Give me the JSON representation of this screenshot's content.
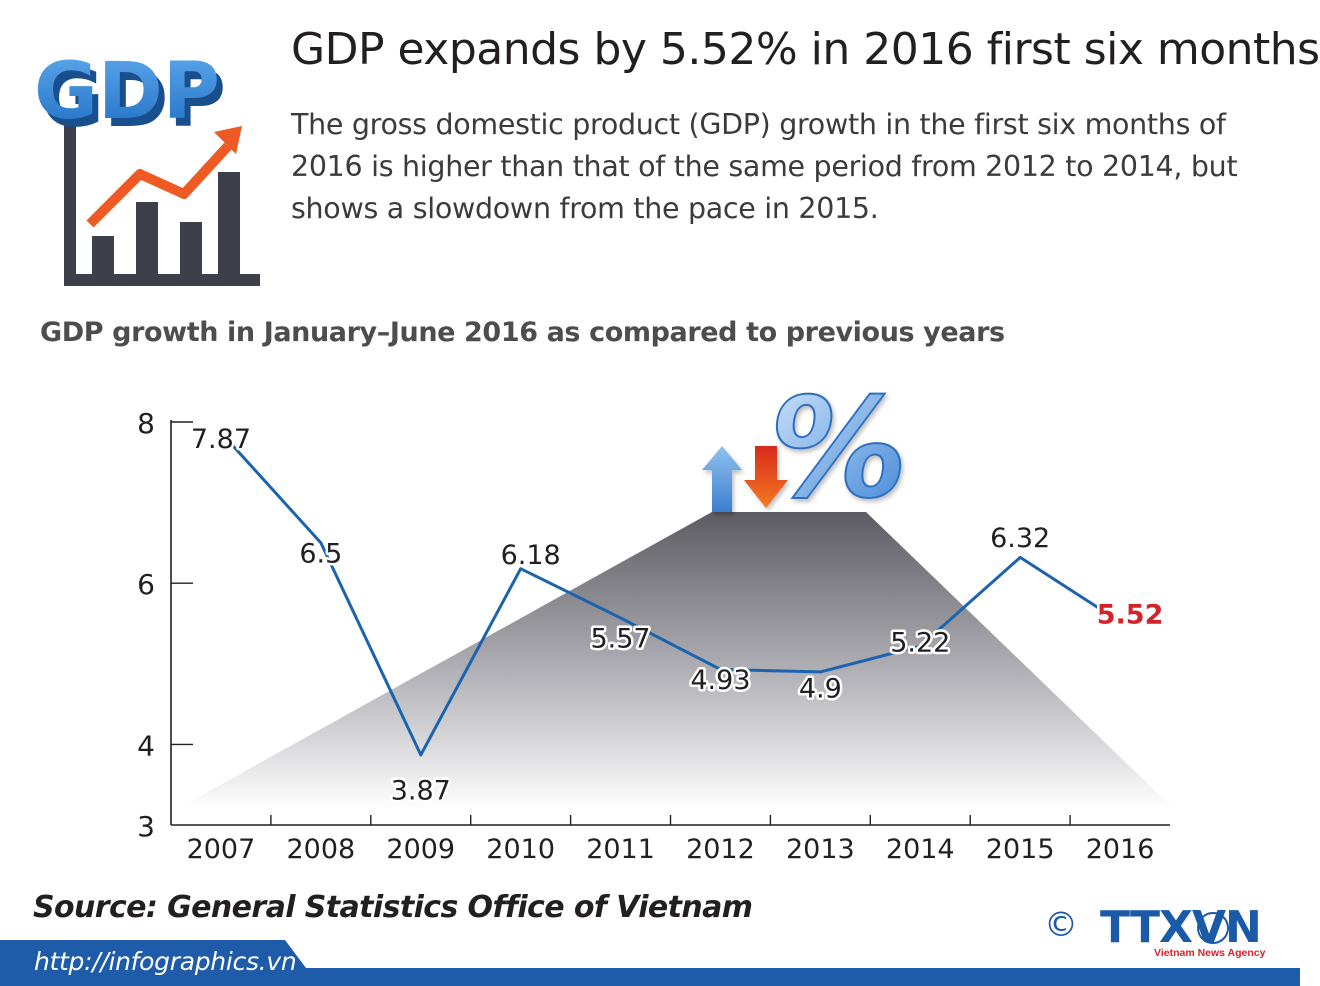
{
  "header": {
    "title": "GDP expands by 5.52% in 2016 first six months",
    "intro": "The gross domestic product (GDP) growth in the first six months of 2016 is higher than that of the same period from 2012 to 2014, but shows a slowdown from the pace in 2015.",
    "logo_text": "GDP"
  },
  "chart_data": {
    "type": "line",
    "title": "GDP growth in January–June 2016 as compared to previous years",
    "categories": [
      "2007",
      "2008",
      "2009",
      "2010",
      "2011",
      "2012",
      "2013",
      "2014",
      "2015",
      "2016"
    ],
    "values": [
      7.87,
      6.5,
      3.87,
      6.18,
      5.57,
      4.93,
      4.9,
      5.22,
      6.32,
      5.52
    ],
    "data_labels": [
      "7.87",
      "6.5",
      "3.87",
      "6.18",
      "5.57",
      "4.93",
      "4.9",
      "5.22",
      "6.32",
      "5.52"
    ],
    "highlight_index": 9,
    "y_ticks": [
      3,
      4,
      6,
      8
    ],
    "ylim": [
      3,
      8
    ],
    "grid": false,
    "colors": {
      "line": "#1b63ae",
      "highlight": "#d2232a",
      "text": "#231f20"
    }
  },
  "decoration": {
    "percent_sign": "%"
  },
  "footer": {
    "source": "Source: General Statistics Office of Vietnam",
    "url": "http://infographics.vn",
    "copyright": "©",
    "agency_logo": "TTXVN",
    "agency_name": "Vietnam News Agency"
  }
}
